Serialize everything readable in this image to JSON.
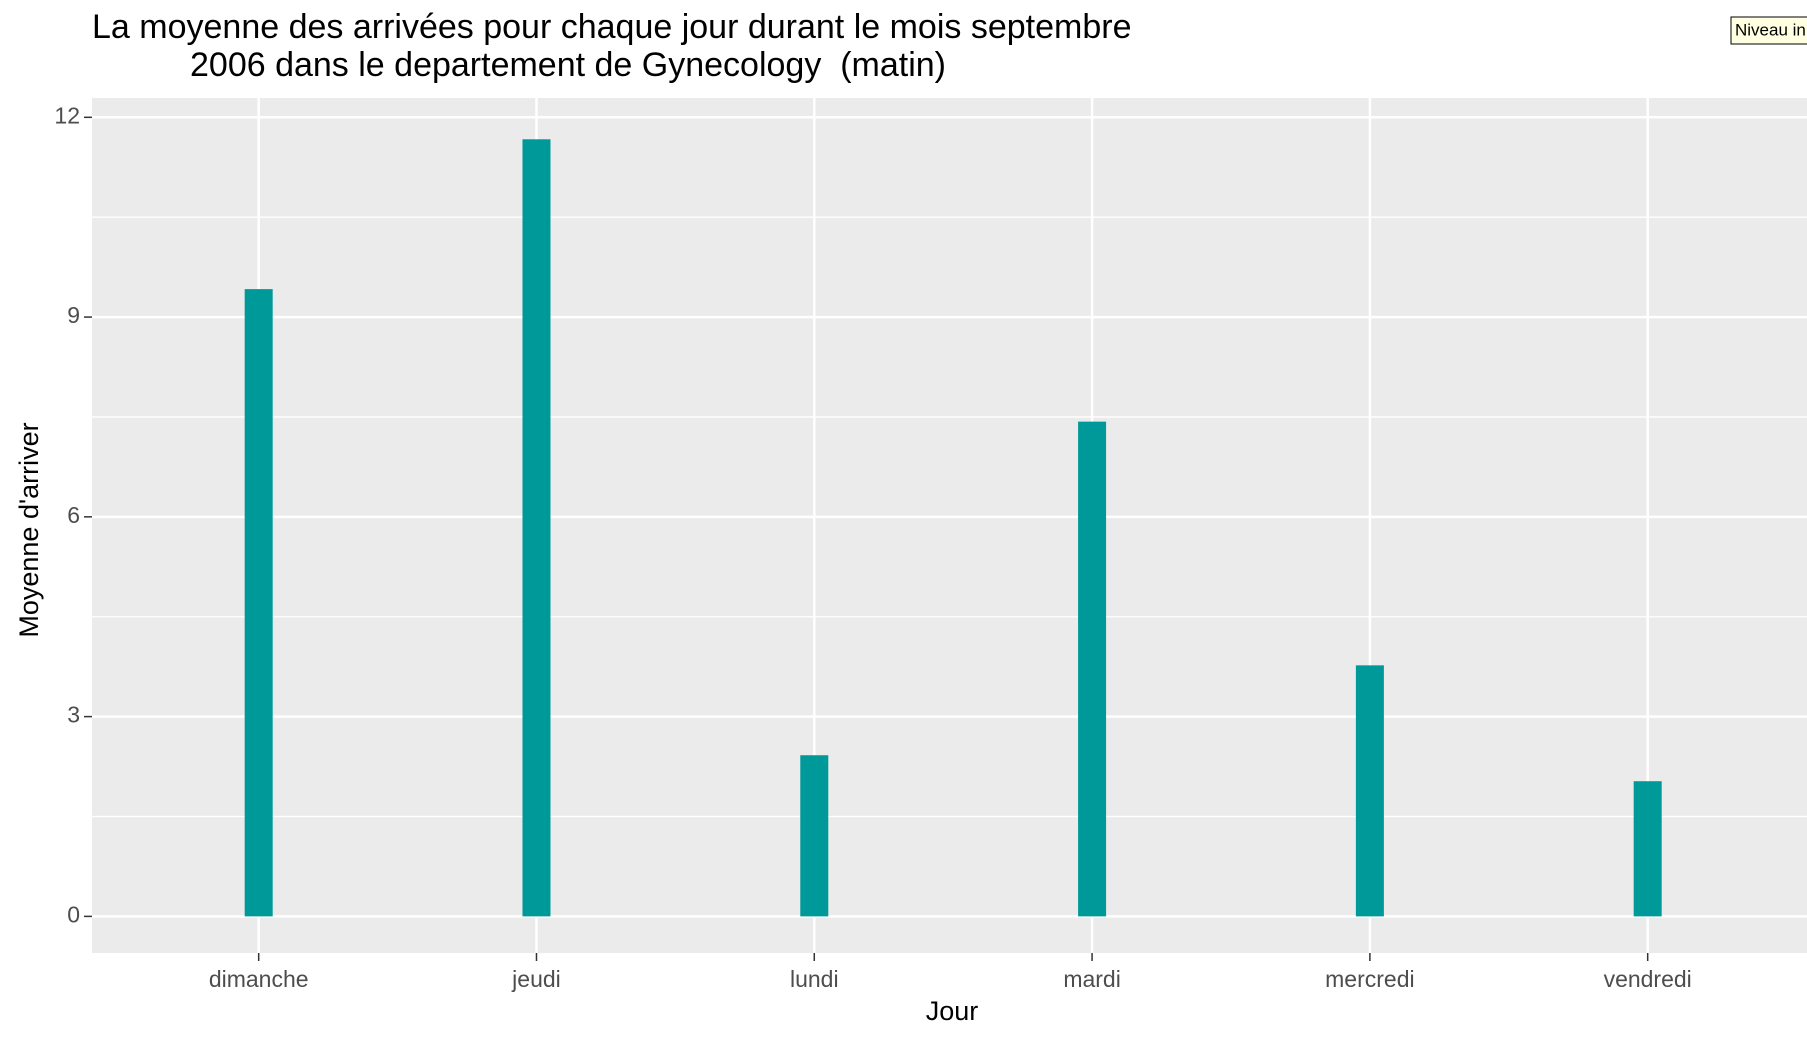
{
  "chart_data": {
    "type": "bar",
    "title": [
      "La moyenne des arrivées pour chaque jour durant le mois septembre",
      "2006 dans le departement de Gynecology  (matin)"
    ],
    "x_label": "Jour",
    "y_label": "Moyenne d'arriver",
    "categories": [
      "dimanche",
      "jeudi",
      "lundi",
      "mardi",
      "mercredi",
      "vendredi"
    ],
    "values": [
      9.42,
      11.67,
      2.42,
      7.43,
      3.77,
      2.03
    ],
    "color": "#009999",
    "ylim": [
      -0.55,
      12.29
    ],
    "yticks": [
      0,
      3,
      6,
      9,
      12
    ],
    "grid": true,
    "tooltip": "Niveau in"
  }
}
